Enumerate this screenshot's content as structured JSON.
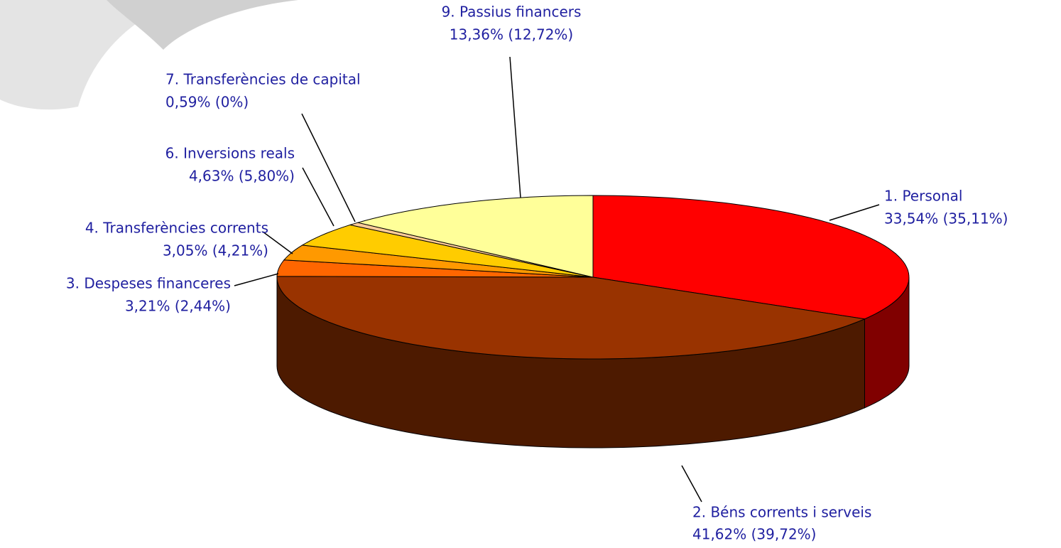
{
  "chart_data": {
    "type": "pie3d",
    "categories": [
      "1. Personal",
      "2. Béns corrents i serveis",
      "3. Despeses financeres",
      "4. Transferències corrents",
      "6. Inversions reals",
      "7. Transferències de capital",
      "9. Passius financers"
    ],
    "values": [
      33.54,
      41.62,
      3.21,
      3.05,
      4.63,
      0.59,
      13.36
    ],
    "value_labels": [
      "33,54% (35,11%)",
      "41,62% (39,72%)",
      "3,21% (2,44%)",
      "3,05% (4,21%)",
      "4,63% (5,80%)",
      "0,59% (0%)",
      "13,36% (12,72%)"
    ],
    "colors": [
      "#ff0000",
      "#993300",
      "#ff6600",
      "#ff9900",
      "#ffcc00",
      "#ffcc99",
      "#ffff99"
    ]
  }
}
